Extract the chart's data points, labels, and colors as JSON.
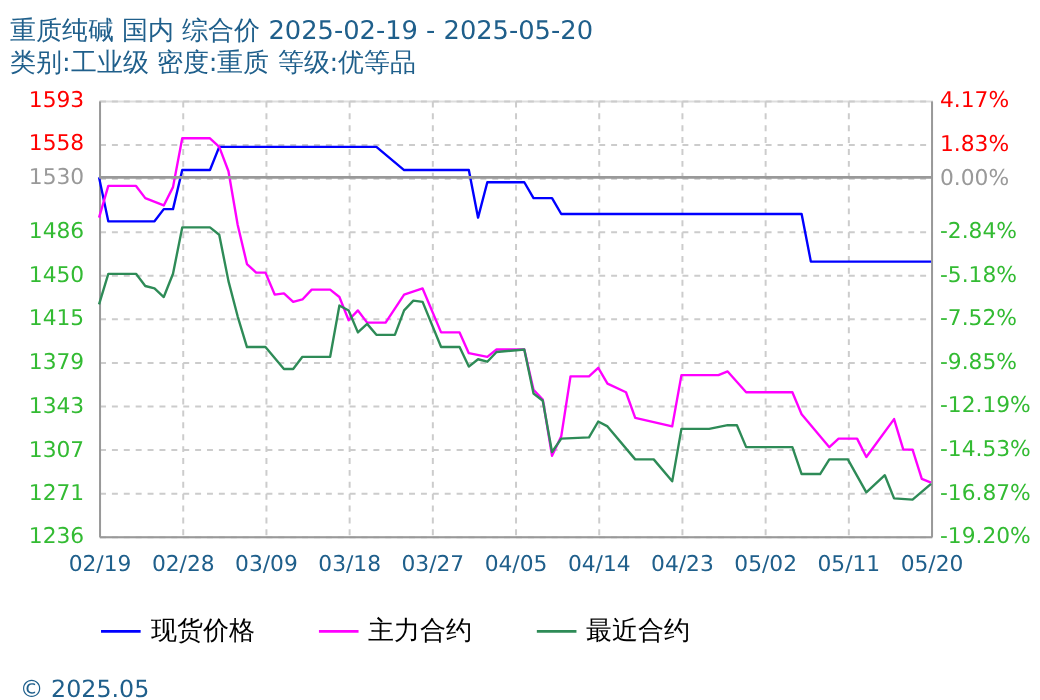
{
  "chart_data": {
    "type": "line",
    "title": "重质纯碱 国内 综合价 2025-02-19 - 2025-05-20",
    "subtitle": "类别:工业级 密度:重质 等级:优等品",
    "xlim": [
      "2025-02-19",
      "2025-05-20"
    ],
    "xticks": [
      {
        "value": "2025-02-19",
        "label": "02/19"
      },
      {
        "value": "2025-02-28",
        "label": "02/28"
      },
      {
        "value": "2025-03-09",
        "label": "03/09"
      },
      {
        "value": "2025-03-18",
        "label": "03/18"
      },
      {
        "value": "2025-03-27",
        "label": "03/27"
      },
      {
        "value": "2025-04-05",
        "label": "04/05"
      },
      {
        "value": "2025-04-14",
        "label": "04/14"
      },
      {
        "value": "2025-04-23",
        "label": "04/23"
      },
      {
        "value": "2025-05-02",
        "label": "05/02"
      },
      {
        "value": "2025-05-11",
        "label": "05/11"
      },
      {
        "value": "2025-05-20",
        "label": "05/20"
      }
    ],
    "ylim": [
      1236,
      1593
    ],
    "yticks": [
      1236,
      1271,
      1307,
      1343,
      1379,
      1415,
      1450,
      1486,
      1530,
      1558,
      1593
    ],
    "y2lim": [
      -19.2,
      4.17
    ],
    "y2ticks": [
      {
        "value": -19.2,
        "label": "-19.20%"
      },
      {
        "value": -16.87,
        "label": "-16.87%"
      },
      {
        "value": -14.53,
        "label": "-14.53%"
      },
      {
        "value": -12.19,
        "label": "-12.19%"
      },
      {
        "value": -9.85,
        "label": "-9.85%"
      },
      {
        "value": -7.52,
        "label": "-7.52%"
      },
      {
        "value": -5.18,
        "label": "-5.18%"
      },
      {
        "value": -2.84,
        "label": "-2.84%"
      },
      {
        "value": 0.0,
        "label": "0.00%"
      },
      {
        "value": 1.83,
        "label": "1.83%"
      },
      {
        "value": 4.17,
        "label": "4.17%"
      }
    ],
    "ref_lines": [
      {
        "axis": "y",
        "value": 1530,
        "color": "#999999"
      }
    ],
    "grid": true,
    "legend": "bottom",
    "marker": "none",
    "line_style": "solid",
    "annotations": [
      "© 2025.05"
    ],
    "series": [
      {
        "name": "现货价格",
        "color": "#0000ff",
        "x": [
          "2025-02-19",
          "2025-02-20",
          "2025-02-25",
          "2025-02-26",
          "2025-02-27",
          "2025-02-28",
          "2025-03-03",
          "2025-03-04",
          "2025-03-21",
          "2025-03-24",
          "2025-03-31",
          "2025-04-01",
          "2025-04-02",
          "2025-04-06",
          "2025-04-07",
          "2025-04-09",
          "2025-04-10",
          "2025-05-06",
          "2025-05-07",
          "2025-05-20"
        ],
        "values": [
          1530,
          1494,
          1494,
          1504,
          1504,
          1536,
          1536,
          1555,
          1555,
          1536,
          1536,
          1497,
          1526,
          1526,
          1513,
          1513,
          1500,
          1500,
          1461,
          1461
        ]
      },
      {
        "name": "主力合约",
        "color": "#ff00ff",
        "x": [
          "2025-02-19",
          "2025-02-20",
          "2025-02-23",
          "2025-02-24",
          "2025-02-26",
          "2025-02-27",
          "2025-02-28",
          "2025-03-03",
          "2025-03-04",
          "2025-03-05",
          "2025-03-06",
          "2025-03-07",
          "2025-03-08",
          "2025-03-09",
          "2025-03-10",
          "2025-03-11",
          "2025-03-12",
          "2025-03-13",
          "2025-03-14",
          "2025-03-16",
          "2025-03-17",
          "2025-03-18",
          "2025-03-19",
          "2025-03-20",
          "2025-03-22",
          "2025-03-24",
          "2025-03-26",
          "2025-03-28",
          "2025-03-30",
          "2025-03-31",
          "2025-04-02",
          "2025-04-03",
          "2025-04-06",
          "2025-04-07",
          "2025-04-08",
          "2025-04-09",
          "2025-04-10",
          "2025-04-11",
          "2025-04-13",
          "2025-04-14",
          "2025-04-15",
          "2025-04-17",
          "2025-04-18",
          "2025-04-22",
          "2025-04-23",
          "2025-04-27",
          "2025-04-28",
          "2025-04-30",
          "2025-05-05",
          "2025-05-06",
          "2025-05-09",
          "2025-05-10",
          "2025-05-12",
          "2025-05-13",
          "2025-05-16",
          "2025-05-17",
          "2025-05-18",
          "2025-05-19",
          "2025-05-20"
        ],
        "values": [
          1497,
          1523,
          1523,
          1513,
          1507,
          1522,
          1562,
          1562,
          1555,
          1535,
          1491,
          1459,
          1452,
          1452,
          1434,
          1435,
          1428,
          1430,
          1438,
          1438,
          1432,
          1413,
          1421,
          1411,
          1411,
          1434,
          1439,
          1403,
          1403,
          1386,
          1383,
          1389,
          1389,
          1356,
          1348,
          1302,
          1318,
          1367,
          1367,
          1374,
          1361,
          1354,
          1333,
          1326,
          1368,
          1368,
          1371,
          1354,
          1354,
          1336,
          1309,
          1316,
          1316,
          1301,
          1332,
          1307,
          1307,
          1283,
          1280
        ]
      },
      {
        "name": "最近合约",
        "color": "#2e8b57",
        "x": [
          "2025-02-19",
          "2025-02-20",
          "2025-02-23",
          "2025-02-24",
          "2025-02-25",
          "2025-02-26",
          "2025-02-27",
          "2025-02-28",
          "2025-03-03",
          "2025-03-04",
          "2025-03-05",
          "2025-03-06",
          "2025-03-07",
          "2025-03-09",
          "2025-03-11",
          "2025-03-12",
          "2025-03-13",
          "2025-03-16",
          "2025-03-17",
          "2025-03-18",
          "2025-03-19",
          "2025-03-20",
          "2025-03-21",
          "2025-03-23",
          "2025-03-24",
          "2025-03-25",
          "2025-03-26",
          "2025-03-28",
          "2025-03-30",
          "2025-03-31",
          "2025-04-01",
          "2025-04-02",
          "2025-04-03",
          "2025-04-06",
          "2025-04-07",
          "2025-04-08",
          "2025-04-09",
          "2025-04-10",
          "2025-04-13",
          "2025-04-14",
          "2025-04-15",
          "2025-04-18",
          "2025-04-20",
          "2025-04-22",
          "2025-04-23",
          "2025-04-26",
          "2025-04-28",
          "2025-04-29",
          "2025-04-30",
          "2025-05-05",
          "2025-05-06",
          "2025-05-08",
          "2025-05-09",
          "2025-05-11",
          "2025-05-13",
          "2025-05-15",
          "2025-05-16",
          "2025-05-18",
          "2025-05-20"
        ],
        "values": [
          1426,
          1451,
          1451,
          1441,
          1439,
          1432,
          1451,
          1489,
          1489,
          1483,
          1445,
          1416,
          1391,
          1391,
          1373,
          1373,
          1383,
          1383,
          1425,
          1421,
          1403,
          1410,
          1401,
          1401,
          1421,
          1429,
          1428,
          1391,
          1391,
          1375,
          1381,
          1379,
          1387,
          1389,
          1353,
          1347,
          1305,
          1316,
          1317,
          1330,
          1326,
          1299,
          1299,
          1281,
          1324,
          1324,
          1327,
          1327,
          1309,
          1309,
          1287,
          1287,
          1299,
          1299,
          1272,
          1286,
          1267,
          1266,
          1279
        ]
      }
    ]
  }
}
